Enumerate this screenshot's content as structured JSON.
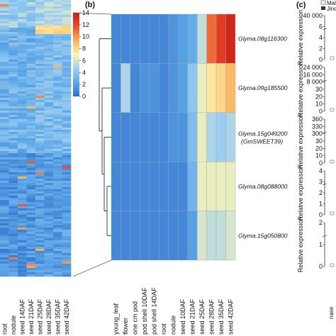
{
  "figure": {
    "panel_b_letter": "(b)",
    "panel_c_letter": "(c)",
    "legend_partial": [
      "Mali",
      "Jindo"
    ]
  },
  "chart_data": [
    {
      "type": "heatmap",
      "panel": "a",
      "columns": [
        "root",
        "nodule",
        "seed 14DAF",
        "seed 21DAF",
        "seed 25DAF",
        "seed 28DAF",
        "seed 35DAF",
        "seed 42DAF"
      ],
      "colorbar": {
        "ticks": [
          0,
          2,
          4,
          6,
          8,
          10,
          12,
          14
        ],
        "range": [
          0,
          14
        ],
        "colors": [
          "#2f6fc9",
          "#5fa8e8",
          "#9fd0f0",
          "#fff5b0",
          "#fdb05a",
          "#e8502a",
          "#cc1b16"
        ]
      }
    },
    {
      "type": "heatmap",
      "panel": "b",
      "columns": [
        "young_leaf",
        "flower",
        "one cm pod",
        "pod shell 10DAF",
        "pod shell 14DAF",
        "root",
        "nodule",
        "seed 10DAF",
        "seed 21DAF",
        "seed 25DAF",
        "seed 28DAF",
        "seed 35DAF",
        "seed 42DAF"
      ],
      "rows": [
        {
          "gene": "Glyma.08g116300",
          "alias": "",
          "values": [
            1.0,
            1.0,
            1.0,
            1.0,
            1.0,
            1.0,
            1.5,
            2.0,
            2.5,
            5.5,
            11.0,
            12.5,
            13.5
          ]
        },
        {
          "gene": "Glyma.09g185500",
          "alias": "",
          "values": [
            1.0,
            5.0,
            1.0,
            1.5,
            1.5,
            1.0,
            1.5,
            2.0,
            4.0,
            6.5,
            7.5,
            8.0,
            9.0
          ]
        },
        {
          "gene": "Glyma.15g049200",
          "alias": "(GmSWEET39)",
          "values": [
            1.0,
            1.0,
            1.0,
            1.0,
            1.0,
            1.0,
            1.5,
            1.5,
            3.5,
            6.5,
            5.0,
            4.5,
            5.0
          ]
        },
        {
          "gene": "Glyma.08g088000",
          "alias": "",
          "values": [
            1.0,
            1.0,
            1.0,
            1.0,
            1.0,
            1.0,
            1.0,
            1.0,
            3.0,
            6.5,
            6.5,
            6.5,
            6.5
          ]
        },
        {
          "gene": "Glyma.15g050800",
          "alias": "",
          "values": [
            1.0,
            1.0,
            1.0,
            1.0,
            1.0,
            1.0,
            1.0,
            1.0,
            2.0,
            6.0,
            5.5,
            5.5,
            6.0
          ]
        }
      ]
    },
    {
      "type": "bar",
      "panel": "c",
      "ylabel": "Relative expression",
      "subplots": [
        {
          "ticks": [
            "40 000",
            "6",
            "4",
            "2",
            "0"
          ]
        },
        {
          "ticks": [
            "24 000",
            "16 000",
            "8 000",
            "30",
            "20",
            "10",
            "0"
          ]
        },
        {
          "ticks": [
            "360",
            "330",
            "300",
            "30",
            "20",
            "10",
            "0"
          ]
        },
        {
          "ticks": [
            "4",
            "3",
            "2",
            "1",
            "0"
          ]
        },
        {
          "ticks": [
            "2",
            "1",
            "0"
          ]
        }
      ],
      "xtick_partial": "nase"
    }
  ]
}
